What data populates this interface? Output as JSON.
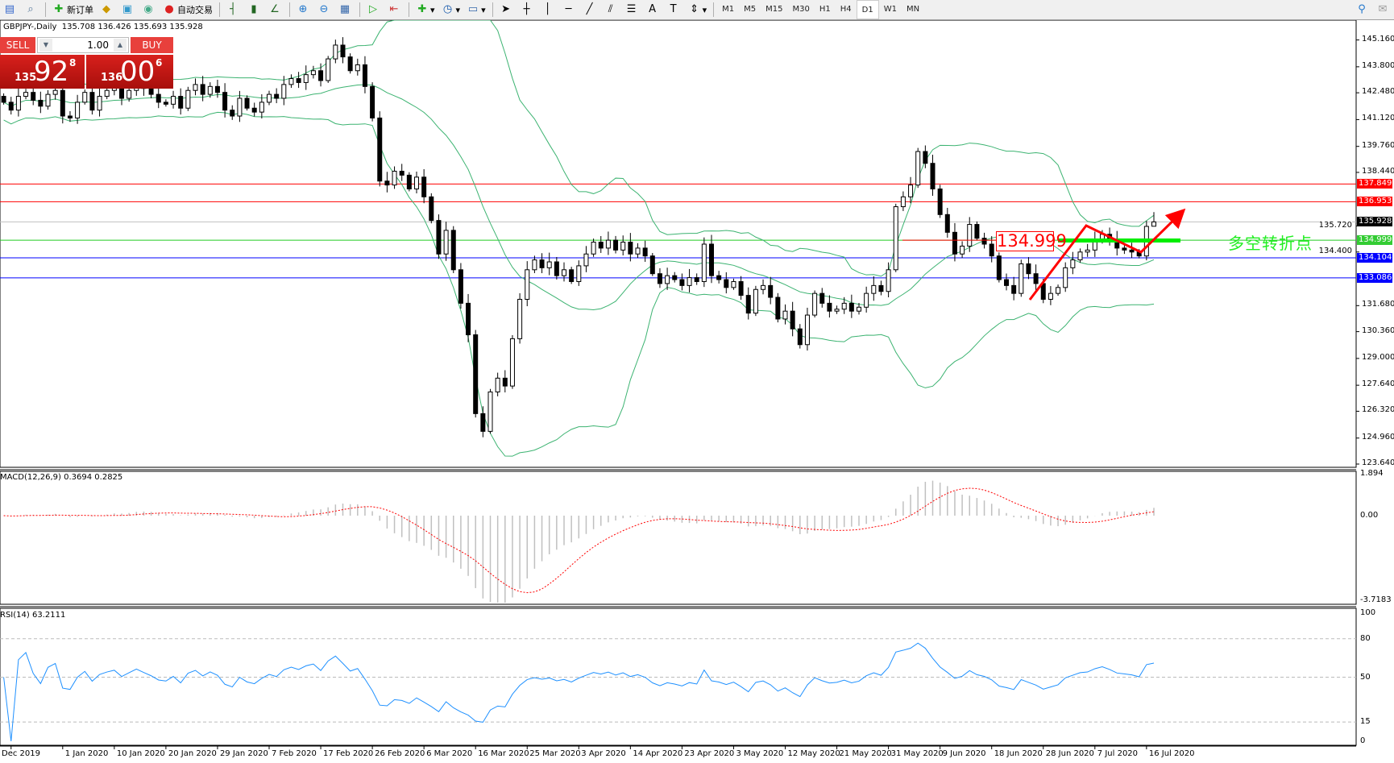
{
  "toolbar": {
    "items": [
      {
        "icon": "new-chart-icon"
      },
      {
        "icon": "zoom-chart-icon"
      },
      {
        "icon": "new-order-icon",
        "label": "新订单"
      },
      {
        "icon": "metaeditor-icon"
      },
      {
        "icon": "terminal-icon"
      },
      {
        "icon": "signal-icon"
      },
      {
        "icon": "auto-trading-icon",
        "label": "自动交易"
      }
    ],
    "timeframes": [
      "M1",
      "M5",
      "M15",
      "M30",
      "H1",
      "H4",
      "D1",
      "W1",
      "MN"
    ],
    "active_timeframe": "D1"
  },
  "chart": {
    "symbol_info": "GBPJPY-,Daily",
    "ohlc_info": "135.708 136.426 135.693 135.928",
    "trade_panel": {
      "sell_label": "SELL",
      "buy_label": "BUY",
      "lot": "1.00",
      "sell_price": {
        "small": "135",
        "main": "92",
        "pip": "8"
      },
      "buy_price": {
        "small": "136",
        "main": "00",
        "pip": "6"
      }
    },
    "annotation_price": "134.999",
    "annotation_text": "多空转折点",
    "colors": {
      "bull_body": "#ffffff",
      "bear_body": "#000000",
      "bands": "#3cb371",
      "arrow": "#ff0000",
      "pivot": "#00ee00"
    }
  },
  "chart_data": [
    {
      "type": "candlestick",
      "symbol": "GBPJPY",
      "timeframe": "Daily",
      "ylim": [
        123.64,
        145.16
      ],
      "y_ticks": [
        "145.160",
        "143.800",
        "142.480",
        "141.120",
        "139.760",
        "138.440",
        "135.720",
        "134.400",
        "131.680",
        "130.360",
        "129.000",
        "127.640",
        "126.320",
        "124.960",
        "123.640"
      ],
      "x_tick_labels": [
        {
          "bar": 1,
          "label": "Dec 2019"
        },
        {
          "bar": 8,
          "label": "1 Jan 2020"
        },
        {
          "bar": 15,
          "label": "10 Jan 2020"
        },
        {
          "bar": 22,
          "label": "20 Jan 2020"
        },
        {
          "bar": 29,
          "label": "29 Jan 2020"
        },
        {
          "bar": 36,
          "label": "7 Feb 2020"
        },
        {
          "bar": 43,
          "label": "17 Feb 2020"
        },
        {
          "bar": 50,
          "label": "26 Feb 2020"
        },
        {
          "bar": 57,
          "label": "6 Mar 2020"
        },
        {
          "bar": 64,
          "label": "16 Mar 2020"
        },
        {
          "bar": 71,
          "label": "25 Mar 2020"
        },
        {
          "bar": 78,
          "label": "3 Apr 2020"
        },
        {
          "bar": 85,
          "label": "14 Apr 2020"
        },
        {
          "bar": 92,
          "label": "23 Apr 2020"
        },
        {
          "bar": 99,
          "label": "3 May 2020"
        },
        {
          "bar": 106,
          "label": "12 May 2020"
        },
        {
          "bar": 113,
          "label": "21 May 2020"
        },
        {
          "bar": 120,
          "label": "31 May 2020"
        },
        {
          "bar": 127,
          "label": "9 Jun 2020"
        },
        {
          "bar": 134,
          "label": "18 Jun 2020"
        },
        {
          "bar": 141,
          "label": "28 Jun 2020"
        },
        {
          "bar": 148,
          "label": "7 Jul 2020"
        },
        {
          "bar": 155,
          "label": "16 Jul 2020"
        }
      ],
      "close": [
        142.0,
        141.6,
        142.3,
        142.5,
        142.1,
        141.8,
        142.4,
        142.6,
        141.3,
        141.2,
        142.0,
        142.5,
        141.6,
        142.3,
        142.6,
        142.8,
        142.2,
        142.6,
        143.0,
        142.7,
        142.4,
        142.0,
        141.9,
        142.3,
        141.7,
        142.6,
        142.9,
        142.4,
        142.8,
        142.5,
        141.6,
        141.3,
        142.2,
        141.7,
        141.5,
        142.0,
        142.4,
        142.2,
        142.9,
        143.2,
        143.0,
        143.4,
        143.6,
        143.1,
        144.2,
        144.9,
        144.3,
        143.6,
        143.9,
        142.8,
        141.2,
        138.0,
        137.8,
        138.5,
        138.3,
        137.6,
        138.2,
        137.2,
        136.0,
        134.3,
        135.5,
        133.5,
        131.8,
        130.2,
        126.2,
        125.3,
        127.3,
        128.0,
        127.6,
        130.0,
        132.0,
        133.5,
        134.0,
        133.6,
        133.9,
        133.2,
        133.5,
        132.9,
        133.7,
        134.3,
        134.9,
        134.6,
        135.0,
        134.5,
        134.9,
        134.3,
        134.6,
        134.2,
        133.3,
        132.8,
        133.2,
        133.0,
        132.7,
        133.1,
        132.9,
        134.8,
        133.2,
        133.0,
        132.6,
        132.9,
        132.2,
        131.3,
        132.5,
        132.7,
        132.1,
        131.0,
        131.4,
        130.5,
        129.7,
        131.2,
        132.3,
        131.8,
        131.4,
        131.5,
        131.8,
        131.4,
        131.6,
        132.3,
        132.7,
        132.4,
        133.5,
        136.7,
        137.2,
        137.8,
        139.5,
        138.9,
        137.6,
        136.3,
        135.4,
        134.3,
        134.7,
        135.8,
        135.1,
        134.8,
        134.2,
        133.0,
        132.7,
        132.3,
        133.8,
        133.3,
        132.8,
        132.0,
        132.3,
        132.6,
        133.6,
        134.0,
        134.4,
        134.5,
        135.0,
        135.3,
        135.0,
        134.6,
        134.5,
        134.4,
        134.2,
        135.7,
        135.928
      ],
      "last": {
        "open": 135.708,
        "high": 136.426,
        "low": 135.693,
        "close": 135.928
      },
      "indicators": [
        "Bollinger Bands"
      ],
      "horizontal_lines": [
        {
          "price": "137.849",
          "color": "#ff0000"
        },
        {
          "price": "136.953",
          "color": "#ff0000"
        },
        {
          "price": "135.928",
          "color": "#c0c0c0",
          "tag_color": "#000000"
        },
        {
          "price": "134.999",
          "color": "#22cc22",
          "tag_color": "#33cc33"
        },
        {
          "price": "134.104",
          "color": "#0000ff"
        },
        {
          "price": "133.086",
          "color": "#0000ff"
        }
      ]
    },
    {
      "type": "bar",
      "title": "MACD(12,26,9) 0.3694 0.2825",
      "ylim": [
        -3.7183,
        1.894
      ],
      "y_ticks": [
        "1.894",
        "0.00",
        "-3.7183"
      ],
      "colors": {
        "histogram": "#c0c0c0",
        "signal": "#ff0000"
      }
    },
    {
      "type": "line",
      "title": "RSI(14) 63.2111",
      "ylim": [
        0,
        100
      ],
      "y_ticks": [
        "100",
        "80",
        "50",
        "15",
        "0"
      ],
      "levels": [
        80,
        50,
        15
      ],
      "colors": {
        "line": "#1e90ff"
      }
    }
  ]
}
